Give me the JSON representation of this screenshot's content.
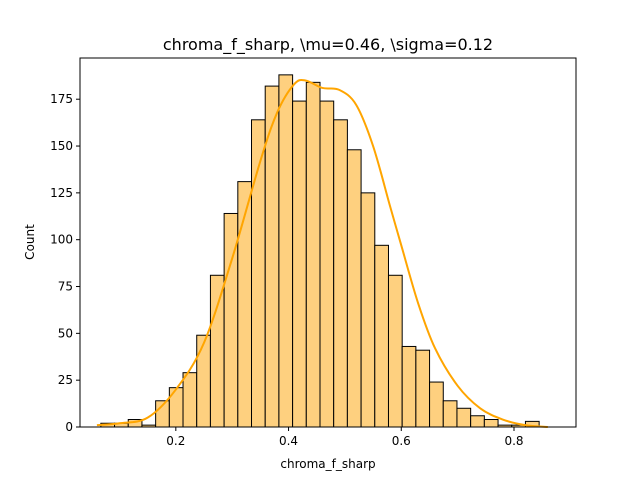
{
  "chart_data": {
    "type": "bar",
    "title": "chroma_f_sharp, \\mu=0.46, \\sigma=0.12",
    "xlabel": "chroma_f_sharp",
    "ylabel": "Count",
    "xlim": [
      0.03,
      0.91
    ],
    "ylim": [
      0,
      197
    ],
    "x_ticks": [
      0.2,
      0.4,
      0.6,
      0.8
    ],
    "x_tick_labels": [
      "0.2",
      "0.4",
      "0.6",
      "0.8"
    ],
    "y_ticks": [
      0,
      25,
      50,
      75,
      100,
      125,
      150,
      175
    ],
    "y_tick_labels": [
      "0",
      "25",
      "50",
      "75",
      "100",
      "125",
      "150",
      "175"
    ],
    "grid": false,
    "bin_edges": [
      0.067,
      0.0913,
      0.1156,
      0.1399,
      0.1642,
      0.1885,
      0.2128,
      0.2371,
      0.2614,
      0.2857,
      0.31,
      0.3343,
      0.3586,
      0.3829,
      0.4072,
      0.4315,
      0.4558,
      0.4801,
      0.5044,
      0.5287,
      0.553,
      0.5773,
      0.6016,
      0.6259,
      0.6502,
      0.6745,
      0.6988,
      0.7231,
      0.7474,
      0.7717,
      0.796,
      0.8203,
      0.8446,
      0.8689,
      0.8932
    ],
    "counts": [
      2,
      2,
      4,
      1,
      14,
      21,
      29,
      49,
      81,
      114,
      131,
      164,
      182,
      188,
      174,
      184,
      174,
      164,
      148,
      125,
      97,
      81,
      43,
      41,
      24,
      14,
      10,
      6,
      4,
      1,
      1,
      3,
      0,
      0
    ],
    "kde": {
      "x": [
        0.06,
        0.1,
        0.15,
        0.2,
        0.25,
        0.3,
        0.35,
        0.38,
        0.41,
        0.43,
        0.46,
        0.49,
        0.52,
        0.55,
        0.58,
        0.6,
        0.63,
        0.66,
        0.7,
        0.74,
        0.78,
        0.82,
        0.86
      ],
      "y": [
        1,
        2,
        5,
        20,
        45,
        90,
        142,
        168,
        183,
        185,
        181,
        180,
        172,
        150,
        118,
        97,
        66,
        42,
        22,
        10,
        4,
        1,
        0
      ]
    },
    "colors": {
      "bar_fill": "#fed07f",
      "bar_edge": "#000000",
      "kde_line": "#ffa500"
    }
  }
}
